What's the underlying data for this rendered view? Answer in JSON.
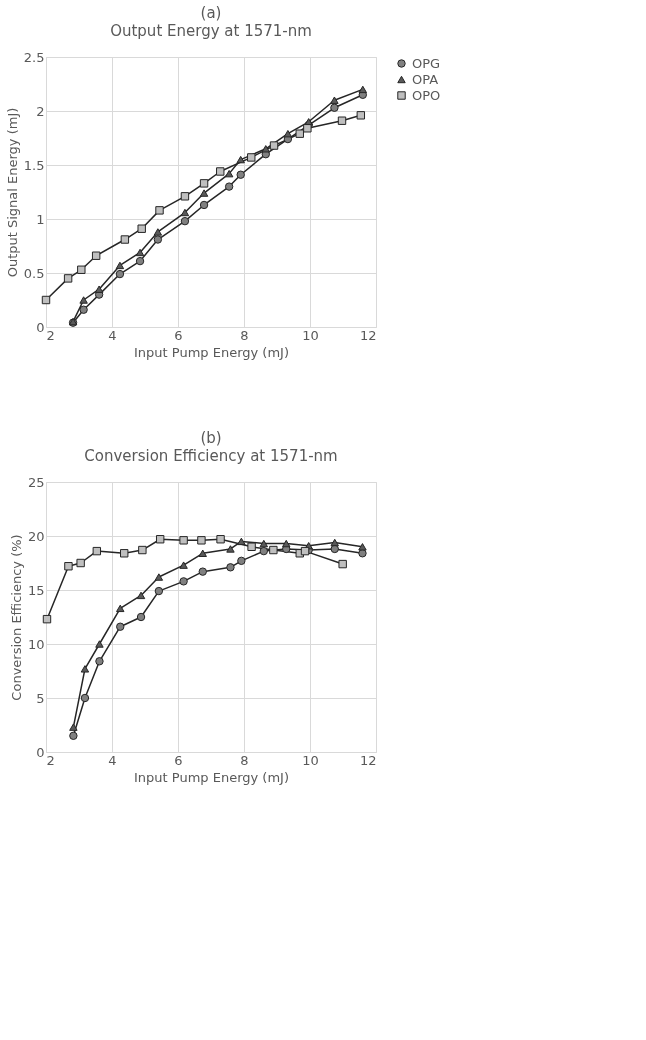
{
  "chart_data": [
    {
      "type": "line",
      "title": "(a)",
      "subtitle": "Output Energy at 1571-nm",
      "xlabel": "Input Pump Energy (mJ)",
      "ylabel": "Output Signal Energy (mJ)",
      "xlim": [
        2,
        12
      ],
      "xticks": [
        2,
        4,
        6,
        8,
        10,
        12
      ],
      "ylim": [
        0,
        2.5
      ],
      "yticks": [
        0,
        0.5,
        1,
        1.5,
        2,
        2.5
      ],
      "grid": true,
      "legend": "right",
      "series": [
        {
          "name": "OPG",
          "color": "#808080",
          "marker": "circle",
          "x": [
            2.82,
            3.14,
            3.61,
            4.24,
            4.85,
            5.39,
            6.21,
            6.79,
            7.55,
            7.9,
            8.66,
            9.33,
            9.96,
            10.74,
            11.6
          ],
          "values": [
            0.04,
            0.16,
            0.3,
            0.49,
            0.61,
            0.81,
            0.98,
            1.13,
            1.3,
            1.41,
            1.6,
            1.74,
            1.87,
            2.03,
            2.15
          ]
        },
        {
          "name": "OPA",
          "color": "#595959",
          "marker": "triangle",
          "x": [
            2.82,
            3.14,
            3.61,
            4.24,
            4.85,
            5.39,
            6.21,
            6.79,
            7.55,
            7.9,
            8.66,
            9.33,
            9.96,
            10.74,
            11.6
          ],
          "values": [
            0.05,
            0.25,
            0.35,
            0.57,
            0.69,
            0.88,
            1.06,
            1.24,
            1.42,
            1.55,
            1.65,
            1.79,
            1.9,
            2.1,
            2.2
          ]
        },
        {
          "name": "OPO",
          "color": "#bfbfbf",
          "marker": "square",
          "x": [
            2.0,
            2.67,
            3.07,
            3.52,
            4.39,
            4.9,
            5.44,
            6.21,
            6.79,
            7.28,
            8.22,
            8.91,
            9.69,
            9.92,
            10.97,
            11.54
          ],
          "values": [
            0.25,
            0.45,
            0.53,
            0.66,
            0.81,
            0.91,
            1.08,
            1.21,
            1.33,
            1.44,
            1.57,
            1.68,
            1.79,
            1.84,
            1.91,
            1.96
          ]
        }
      ]
    },
    {
      "type": "line",
      "title": "(b)",
      "subtitle": "Conversion Efficiency at 1571-nm",
      "xlabel": "Input Pump Energy (mJ)",
      "ylabel": "Conversion Efficiency (%)",
      "xlim": [
        2,
        12
      ],
      "xticks": [
        2,
        4,
        6,
        8,
        10,
        12
      ],
      "ylim": [
        0,
        25
      ],
      "yticks": [
        0,
        5,
        10,
        15,
        20,
        25
      ],
      "grid": true,
      "legend": "right",
      "series": [
        {
          "name": "OPG",
          "color": "#808080",
          "marker": "circle",
          "x": [
            2.83,
            3.18,
            3.62,
            4.25,
            4.88,
            5.42,
            6.17,
            6.75,
            7.59,
            7.92,
            8.6,
            9.28,
            9.96,
            10.75,
            11.59
          ],
          "values": [
            1.5,
            5.0,
            8.4,
            11.6,
            12.5,
            14.9,
            15.8,
            16.7,
            17.1,
            17.7,
            18.6,
            18.8,
            18.7,
            18.8,
            18.4
          ]
        },
        {
          "name": "OPA",
          "color": "#595959",
          "marker": "triangle",
          "x": [
            2.83,
            3.18,
            3.62,
            4.25,
            4.88,
            5.42,
            6.17,
            6.75,
            7.59,
            7.92,
            8.6,
            9.28,
            9.96,
            10.75,
            11.59
          ],
          "values": [
            2.3,
            7.7,
            10.0,
            13.3,
            14.5,
            16.2,
            17.3,
            18.4,
            18.8,
            19.5,
            19.3,
            19.3,
            19.1,
            19.4,
            19.0
          ]
        },
        {
          "name": "OPO",
          "color": "#bfbfbf",
          "marker": "square",
          "x": [
            2.03,
            2.68,
            3.05,
            3.54,
            4.37,
            4.92,
            5.46,
            6.17,
            6.71,
            7.29,
            8.23,
            8.89,
            9.69,
            9.85,
            10.99
          ],
          "values": [
            12.3,
            17.2,
            17.5,
            18.6,
            18.4,
            18.7,
            19.7,
            19.6,
            19.6,
            19.7,
            19.0,
            18.7,
            18.4,
            18.6,
            17.4
          ]
        }
      ]
    }
  ]
}
